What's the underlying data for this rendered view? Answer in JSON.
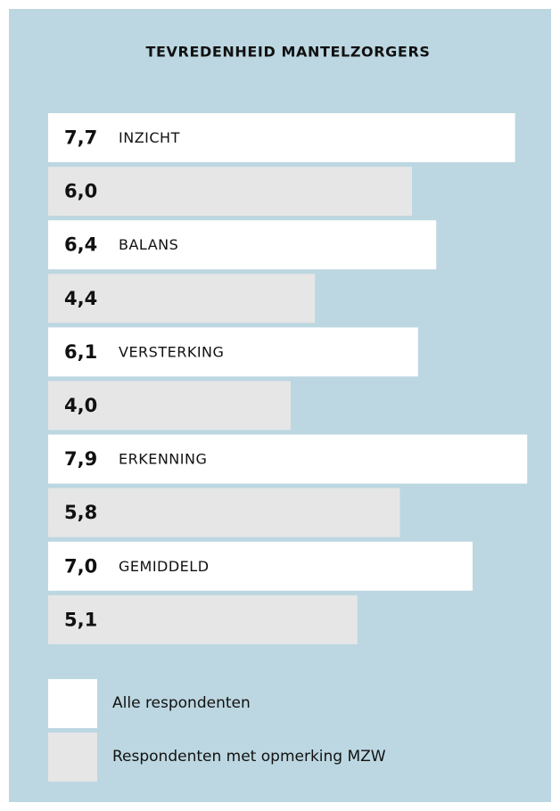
{
  "chart_data": {
    "type": "bar",
    "orientation": "horizontal",
    "title": "TEVREDENHEID MANTELZORGERS",
    "categories": [
      "INZICHT",
      "BALANS",
      "VERSTERKING",
      "ERKENNING",
      "GEMIDDELD"
    ],
    "series": [
      {
        "name": "Alle respondenten",
        "color": "#ffffff",
        "values": [
          7.7,
          6.4,
          6.1,
          7.9,
          7.0
        ],
        "value_labels": [
          "7,7",
          "6,4",
          "6,1",
          "7,9",
          "7,0"
        ]
      },
      {
        "name": "Respondenten met opmerking MZW",
        "color": "#e6e6e6",
        "values": [
          6.0,
          4.4,
          4.0,
          5.8,
          5.1
        ],
        "value_labels": [
          "6,0",
          "4,4",
          "4,0",
          "5,8",
          "5,1"
        ]
      }
    ]
  }
}
